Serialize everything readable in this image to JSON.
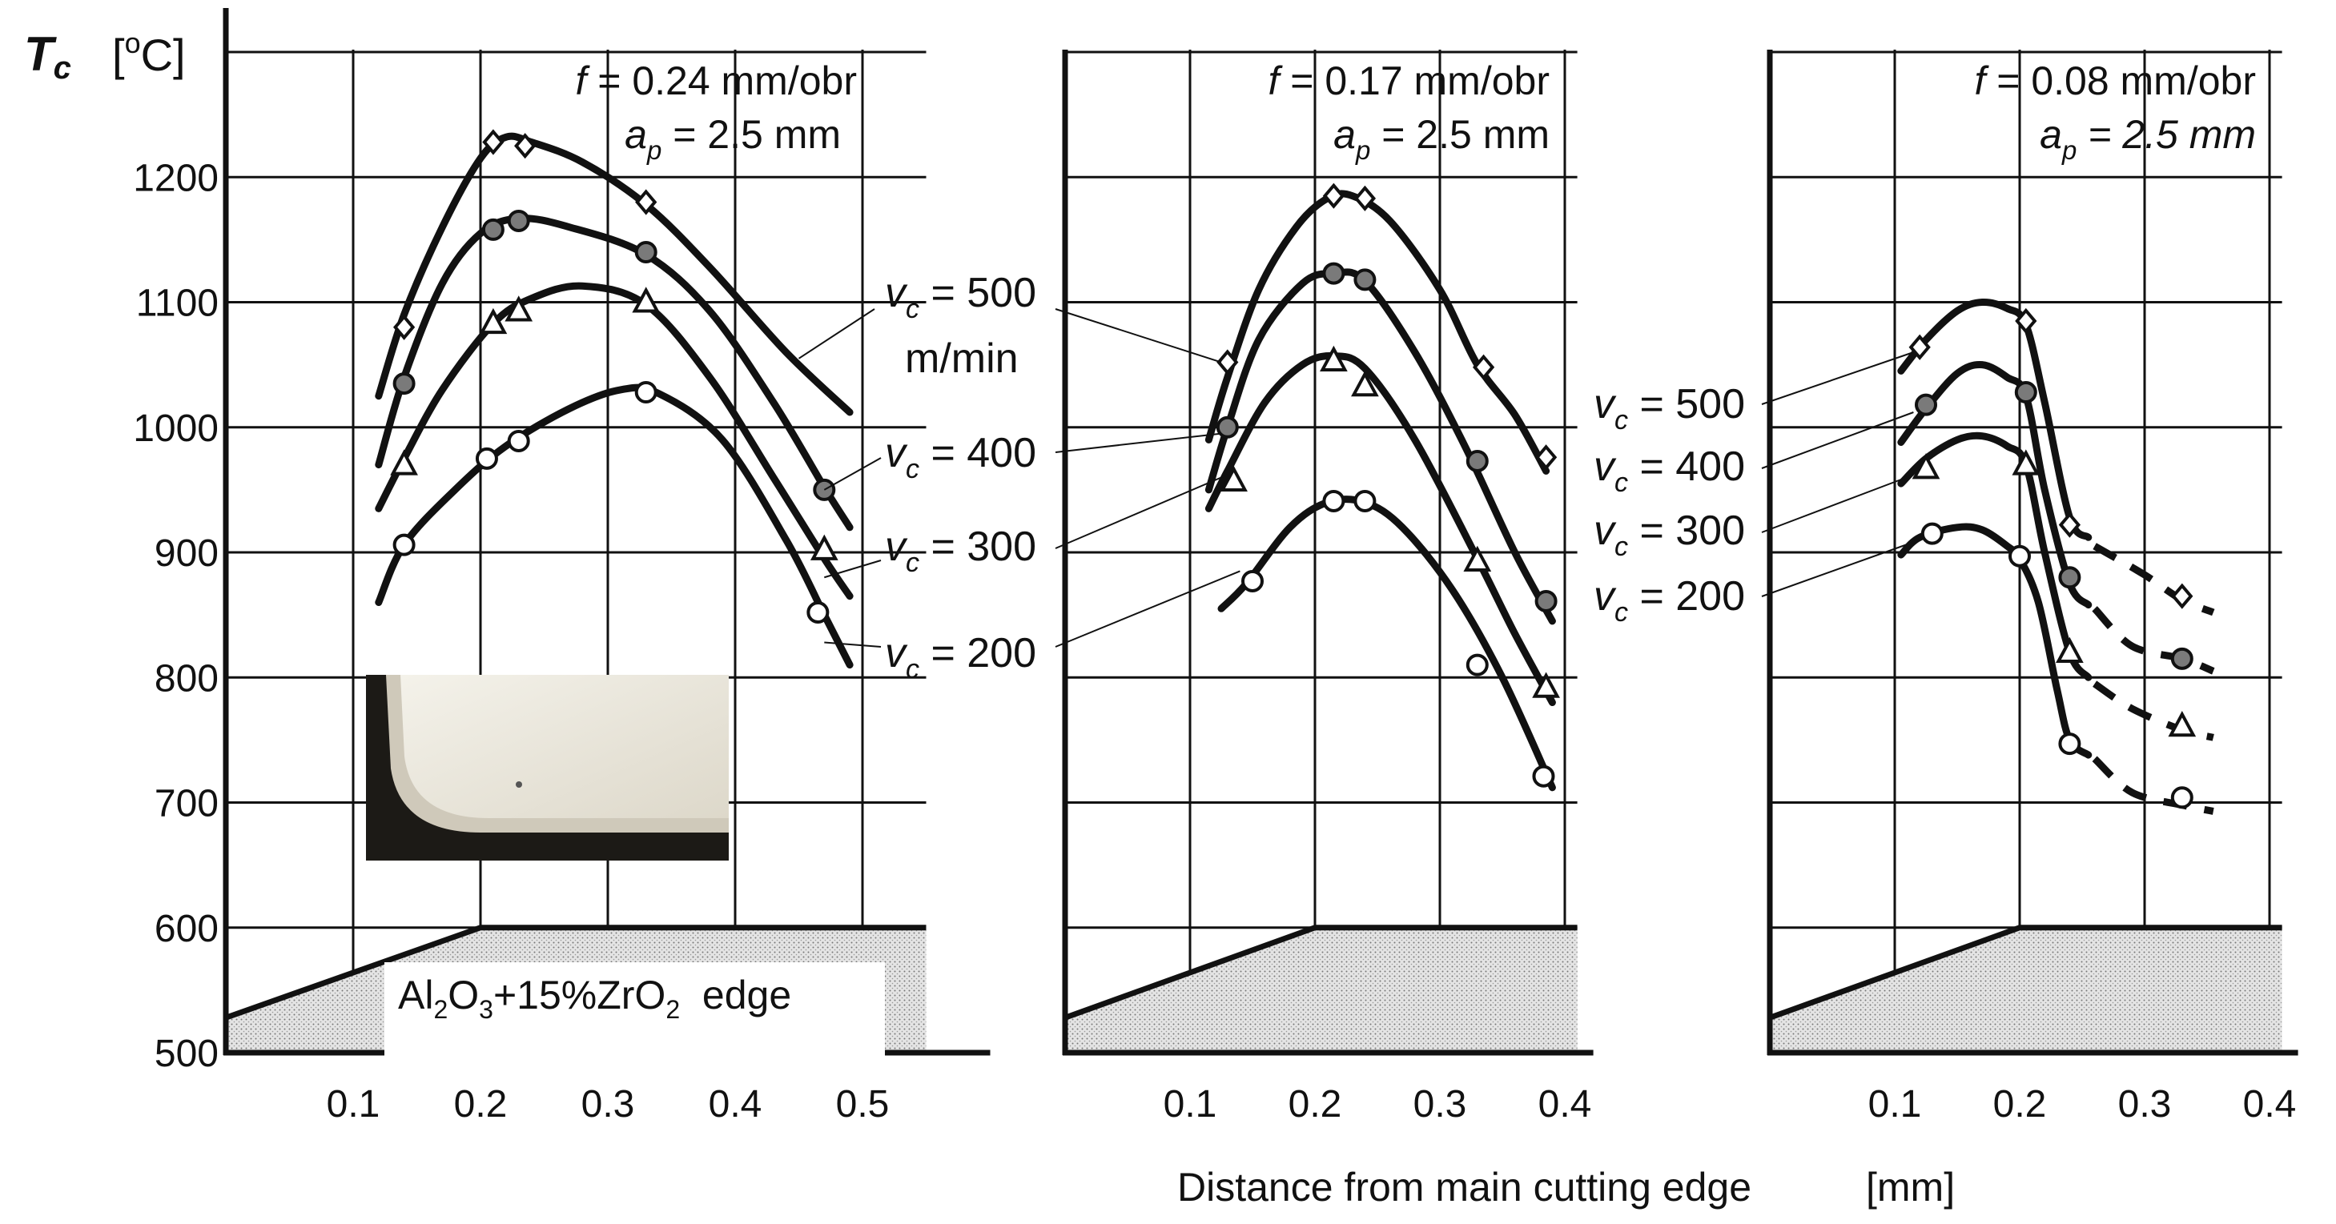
{
  "figure": {
    "ylabel_main": "T",
    "ylabel_sub": "c",
    "yunit_open": "[",
    "yunit_sup": "o",
    "yunit_close": "C]",
    "xlabel": "Distance from main cutting edge",
    "xunit": "[mm]",
    "edge_label": {
      "a": "Al",
      "s1": "2",
      "b": "O",
      "s2": "3",
      "c": "+15%ZrO",
      "s3": "2",
      "d": "  edge"
    }
  },
  "colors": {
    "line": "#111111",
    "fill_marker": "#7a7a7a",
    "edge_fill": "#dcdcdc",
    "photo_dark": "#1c1a16",
    "photo_light": "#ece8dc"
  },
  "chart_data": [
    {
      "type": "line",
      "title": "f = 0.24 mm/obr, ap = 2.5 mm",
      "header": {
        "f_sym": "f",
        "f_val": " = 0.24 mm/obr",
        "ap_sym": "a",
        "ap_sub": "p",
        "ap_val": " = 2.5 mm"
      },
      "ylim": [
        500,
        1300
      ],
      "yticks": [
        500,
        600,
        700,
        800,
        900,
        1000,
        1100,
        1200
      ],
      "xlim": [
        0.0,
        0.55
      ],
      "xticks": [
        0.1,
        0.2,
        0.3,
        0.4,
        0.5
      ],
      "xticklabels": [
        "0.1",
        "0.2",
        "0.3",
        "0.4",
        "0.5"
      ],
      "edge_profile": [
        [
          0.0,
          528
        ],
        [
          0.2,
          600
        ],
        [
          0.55,
          600
        ]
      ],
      "series": [
        {
          "name": "vc = 500",
          "marker": "diamond",
          "curve": [
            [
              0.12,
              1025
            ],
            [
              0.14,
              1090
            ],
            [
              0.17,
              1160
            ],
            [
              0.2,
              1215
            ],
            [
              0.22,
              1232
            ],
            [
              0.24,
              1228
            ],
            [
              0.28,
              1212
            ],
            [
              0.33,
              1178
            ],
            [
              0.38,
              1128
            ],
            [
              0.44,
              1060
            ],
            [
              0.49,
              1012
            ]
          ],
          "points": [
            [
              0.14,
              1080
            ],
            [
              0.21,
              1228
            ],
            [
              0.235,
              1225
            ],
            [
              0.33,
              1180
            ]
          ]
        },
        {
          "name": "vc = 400",
          "marker": "filled-circle",
          "curve": [
            [
              0.12,
              970
            ],
            [
              0.14,
              1040
            ],
            [
              0.17,
              1115
            ],
            [
              0.2,
              1155
            ],
            [
              0.23,
              1167
            ],
            [
              0.27,
              1160
            ],
            [
              0.33,
              1138
            ],
            [
              0.38,
              1093
            ],
            [
              0.43,
              1020
            ],
            [
              0.47,
              952
            ],
            [
              0.49,
              920
            ]
          ],
          "points": [
            [
              0.14,
              1035
            ],
            [
              0.21,
              1158
            ],
            [
              0.23,
              1165
            ],
            [
              0.33,
              1140
            ],
            [
              0.47,
              950
            ]
          ]
        },
        {
          "name": "vc = 300",
          "marker": "triangle",
          "curve": [
            [
              0.12,
              935
            ],
            [
              0.14,
              975
            ],
            [
              0.17,
              1030
            ],
            [
              0.21,
              1083
            ],
            [
              0.24,
              1103
            ],
            [
              0.28,
              1113
            ],
            [
              0.33,
              1098
            ],
            [
              0.38,
              1040
            ],
            [
              0.43,
              960
            ],
            [
              0.47,
              895
            ],
            [
              0.49,
              865
            ]
          ],
          "points": [
            [
              0.14,
              970
            ],
            [
              0.21,
              1083
            ],
            [
              0.23,
              1093
            ],
            [
              0.33,
              1100
            ],
            [
              0.47,
              902
            ]
          ]
        },
        {
          "name": "vc = 200",
          "marker": "open-circle",
          "curve": [
            [
              0.12,
              860
            ],
            [
              0.14,
              906
            ],
            [
              0.18,
              950
            ],
            [
              0.22,
              985
            ],
            [
              0.27,
              1015
            ],
            [
              0.31,
              1030
            ],
            [
              0.34,
              1027
            ],
            [
              0.39,
              990
            ],
            [
              0.44,
              910
            ],
            [
              0.47,
              850
            ],
            [
              0.49,
              810
            ]
          ],
          "points": [
            [
              0.14,
              906
            ],
            [
              0.205,
              975
            ],
            [
              0.23,
              989
            ],
            [
              0.33,
              1028
            ],
            [
              0.465,
              852
            ]
          ]
        }
      ],
      "annotations": [
        {
          "sym": "v",
          "sub": "c",
          "val": " = 500",
          "extra": "m/min",
          "target": [
            0.45,
            1055
          ]
        },
        {
          "sym": "v",
          "sub": "c",
          "val": " = 400",
          "target": [
            0.47,
            950
          ]
        },
        {
          "sym": "v",
          "sub": "c",
          "val": " = 300",
          "target": [
            0.47,
            880
          ]
        },
        {
          "sym": "v",
          "sub": "c",
          "val": " = 200",
          "target": [
            0.47,
            828
          ]
        }
      ]
    },
    {
      "type": "line",
      "title": "f = 0.17 mm/obr, ap = 2.5 mm",
      "header": {
        "f_sym": "f",
        "f_val": " = 0.17 mm/obr",
        "ap_sym": "a",
        "ap_sub": "p",
        "ap_val": " = 2.5 mm"
      },
      "ylim": [
        500,
        1300
      ],
      "yticks": [
        600,
        700,
        800,
        900,
        1000,
        1100,
        1200
      ],
      "xlim": [
        0.0,
        0.41
      ],
      "xticks": [
        0.1,
        0.2,
        0.3,
        0.4
      ],
      "xticklabels": [
        "0.1",
        "0.2",
        "0.3",
        "0.4"
      ],
      "edge_profile": [
        [
          0.0,
          528
        ],
        [
          0.2,
          600
        ],
        [
          0.41,
          600
        ]
      ],
      "series": [
        {
          "name": "vc = 500",
          "marker": "diamond",
          "curve": [
            [
              0.115,
              990
            ],
            [
              0.13,
              1040
            ],
            [
              0.155,
              1110
            ],
            [
              0.185,
              1160
            ],
            [
              0.21,
              1183
            ],
            [
              0.23,
              1185
            ],
            [
              0.26,
              1165
            ],
            [
              0.3,
              1110
            ],
            [
              0.33,
              1050
            ],
            [
              0.36,
              1010
            ],
            [
              0.385,
              965
            ]
          ],
          "points": [
            [
              0.13,
              1052
            ],
            [
              0.215,
              1185
            ],
            [
              0.24,
              1183
            ],
            [
              0.335,
              1048
            ],
            [
              0.385,
              976
            ]
          ]
        },
        {
          "name": "vc = 400",
          "marker": "filled-circle",
          "curve": [
            [
              0.115,
              950
            ],
            [
              0.13,
              1000
            ],
            [
              0.155,
              1070
            ],
            [
              0.19,
              1115
            ],
            [
              0.215,
              1123
            ],
            [
              0.24,
              1117
            ],
            [
              0.28,
              1060
            ],
            [
              0.32,
              985
            ],
            [
              0.36,
              900
            ],
            [
              0.39,
              845
            ]
          ],
          "points": [
            [
              0.13,
              1000
            ],
            [
              0.215,
              1123
            ],
            [
              0.24,
              1118
            ],
            [
              0.33,
              973
            ],
            [
              0.385,
              861
            ]
          ]
        },
        {
          "name": "vc = 300",
          "marker": "triangle",
          "curve": [
            [
              0.115,
              935
            ],
            [
              0.13,
              965
            ],
            [
              0.16,
              1020
            ],
            [
              0.19,
              1050
            ],
            [
              0.215,
              1057
            ],
            [
              0.24,
              1047
            ],
            [
              0.28,
              990
            ],
            [
              0.33,
              895
            ],
            [
              0.36,
              835
            ],
            [
              0.39,
              780
            ]
          ],
          "points": [
            [
              0.135,
              957
            ],
            [
              0.215,
              1053
            ],
            [
              0.24,
              1033
            ],
            [
              0.33,
              893
            ],
            [
              0.385,
              792
            ]
          ]
        },
        {
          "name": "vc = 200",
          "marker": "open-circle",
          "curve": [
            [
              0.125,
              855
            ],
            [
              0.145,
              875
            ],
            [
              0.18,
              920
            ],
            [
              0.21,
              940
            ],
            [
              0.24,
              940
            ],
            [
              0.27,
              920
            ],
            [
              0.31,
              870
            ],
            [
              0.35,
              800
            ],
            [
              0.39,
              712
            ]
          ],
          "points": [
            [
              0.15,
              877
            ],
            [
              0.215,
              941
            ],
            [
              0.24,
              941
            ],
            [
              0.33,
              810
            ],
            [
              0.383,
              721
            ]
          ]
        }
      ],
      "annotations": [
        {
          "target": [
            0.125,
            1052
          ]
        },
        {
          "target": [
            0.125,
            995
          ]
        },
        {
          "target": [
            0.13,
            962
          ]
        },
        {
          "target": [
            0.14,
            885
          ]
        }
      ]
    },
    {
      "type": "line",
      "title": "f = 0.08 mm/obr, ap = 2.5 mm",
      "header": {
        "f_sym": "f",
        "f_val": " = 0.08 mm/obr",
        "ap_sym": "a",
        "ap_sub": "p",
        "ap_val": " = 2.5 mm"
      },
      "ylim": [
        500,
        1300
      ],
      "yticks": [
        600,
        700,
        800,
        900,
        1000,
        1100,
        1200
      ],
      "xlim": [
        0.0,
        0.41
      ],
      "xticks": [
        0.1,
        0.2,
        0.3,
        0.4
      ],
      "xticklabels": [
        "0.1",
        "0.2",
        "0.3",
        "0.4"
      ],
      "edge_profile": [
        [
          0.0,
          528
        ],
        [
          0.2,
          600
        ],
        [
          0.41,
          600
        ]
      ],
      "series": [
        {
          "name": "vc = 500",
          "marker": "diamond",
          "curve": [
            [
              0.105,
              1045
            ],
            [
              0.125,
              1070
            ],
            [
              0.15,
              1093
            ],
            [
              0.17,
              1100
            ],
            [
              0.19,
              1095
            ],
            [
              0.205,
              1082
            ],
            [
              0.22,
              1020
            ],
            [
              0.24,
              928
            ],
            [
              0.255,
              912
            ]
          ],
          "dashed": [
            [
              0.26,
              905
            ],
            [
              0.3,
              882
            ],
            [
              0.33,
              862
            ],
            [
              0.355,
              852
            ]
          ],
          "points": [
            [
              0.12,
              1064
            ],
            [
              0.205,
              1085
            ],
            [
              0.24,
              922
            ],
            [
              0.33,
              865
            ]
          ]
        },
        {
          "name": "vc = 400",
          "marker": "filled-circle",
          "curve": [
            [
              0.105,
              988
            ],
            [
              0.125,
              1015
            ],
            [
              0.15,
              1043
            ],
            [
              0.17,
              1050
            ],
            [
              0.19,
              1040
            ],
            [
              0.205,
              1025
            ],
            [
              0.22,
              950
            ],
            [
              0.24,
              875
            ],
            [
              0.255,
              858
            ]
          ],
          "dashed": [
            [
              0.26,
              855
            ],
            [
              0.29,
              825
            ],
            [
              0.33,
              815
            ],
            [
              0.355,
              805
            ]
          ],
          "points": [
            [
              0.125,
              1018
            ],
            [
              0.205,
              1028
            ],
            [
              0.24,
              880
            ],
            [
              0.33,
              815
            ]
          ]
        },
        {
          "name": "vc = 300",
          "marker": "triangle",
          "curve": [
            [
              0.105,
              955
            ],
            [
              0.125,
              975
            ],
            [
              0.15,
              990
            ],
            [
              0.17,
              993
            ],
            [
              0.19,
              985
            ],
            [
              0.205,
              970
            ],
            [
              0.22,
              900
            ],
            [
              0.24,
              820
            ],
            [
              0.255,
              800
            ]
          ],
          "dashed": [
            [
              0.26,
              795
            ],
            [
              0.29,
              775
            ],
            [
              0.33,
              758
            ],
            [
              0.355,
              752
            ]
          ],
          "points": [
            [
              0.125,
              967
            ],
            [
              0.205,
              970
            ],
            [
              0.24,
              820
            ],
            [
              0.33,
              761
            ]
          ]
        },
        {
          "name": "vc = 200",
          "marker": "open-circle",
          "curve": [
            [
              0.105,
              898
            ],
            [
              0.12,
              912
            ],
            [
              0.15,
              920
            ],
            [
              0.17,
              918
            ],
            [
              0.19,
              905
            ],
            [
              0.2,
              895
            ],
            [
              0.215,
              860
            ],
            [
              0.23,
              790
            ],
            [
              0.24,
              750
            ],
            [
              0.255,
              738
            ]
          ],
          "dashed": [
            [
              0.26,
              735
            ],
            [
              0.29,
              708
            ],
            [
              0.33,
              698
            ],
            [
              0.355,
              693
            ]
          ],
          "points": [
            [
              0.13,
              915
            ],
            [
              0.2,
              897
            ],
            [
              0.24,
              747
            ],
            [
              0.33,
              704
            ]
          ]
        }
      ],
      "annotations": [
        {
          "sym": "v",
          "sub": "c",
          "val": " = 500",
          "target": [
            0.115,
            1060
          ]
        },
        {
          "sym": "v",
          "sub": "c",
          "val": " = 400",
          "target": [
            0.115,
            1012
          ]
        },
        {
          "sym": "v",
          "sub": "c",
          "val": " = 300",
          "target": [
            0.115,
            962
          ]
        },
        {
          "sym": "v",
          "sub": "c",
          "val": " = 200",
          "target": [
            0.12,
            910
          ]
        }
      ]
    }
  ]
}
